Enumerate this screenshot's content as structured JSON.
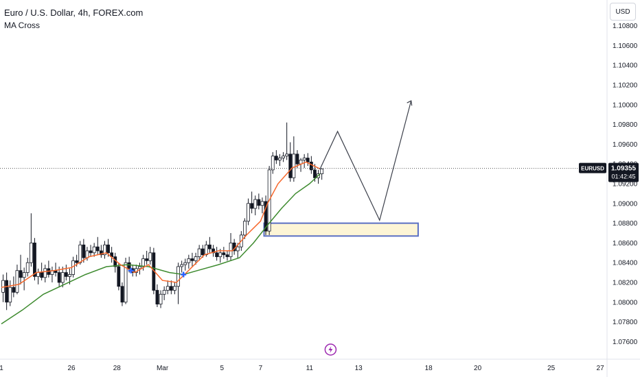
{
  "legend": {
    "title": "Euro / U.S. Dollar, 4h, FOREX.com",
    "indicator": "MA Cross"
  },
  "currency_label": "USD",
  "price_badge": {
    "symbol": "EURUSD",
    "price": "1.09355",
    "countdown": "01:42:45"
  },
  "colors": {
    "up_candle": "#ffffff",
    "down_candle": "#131722",
    "ma_fast": "#f7672b",
    "ma_slow": "#3d8a2e",
    "zone_fill": "#fdf5d6",
    "zone_border": "#5a6fc4",
    "projection": "#3b3f4a",
    "marker": "#2962ff",
    "event_icon": "#9c27b0"
  },
  "chart_data": {
    "type": "candlestick",
    "symbol": "EURUSD",
    "timeframe": "4h",
    "ylim": [
      1.0745,
      1.1095
    ],
    "y_ticks": [
      "1.07600",
      "1.07800",
      "1.08000",
      "1.08200",
      "1.08400",
      "1.08600",
      "1.08800",
      "1.09000",
      "1.09200",
      "1.09400",
      "1.09600",
      "1.09800",
      "1.10000",
      "1.10200",
      "1.10400",
      "1.10600",
      "1.10800"
    ],
    "x_labels": [
      {
        "label": "1",
        "bar": 0
      },
      {
        "label": "26",
        "bar": 20
      },
      {
        "label": "28",
        "bar": 33
      },
      {
        "label": "Mar",
        "bar": 46
      },
      {
        "label": "5",
        "bar": 63
      },
      {
        "label": "7",
        "bar": 74
      },
      {
        "label": "11",
        "bar": 88
      },
      {
        "label": "13",
        "bar": 102
      },
      {
        "label": "18",
        "bar": 122
      },
      {
        "label": "20",
        "bar": 136
      },
      {
        "label": "25",
        "bar": 157
      },
      {
        "label": "27",
        "bar": 171
      }
    ],
    "total_bars": 181,
    "candles": [
      [
        1.081,
        1.0828,
        1.08,
        1.0822
      ],
      [
        1.0822,
        1.083,
        1.0792,
        1.08
      ],
      [
        1.08,
        1.0822,
        1.0796,
        1.0815
      ],
      [
        1.0815,
        1.0826,
        1.0805,
        1.081
      ],
      [
        1.081,
        1.0838,
        1.0808,
        1.0832
      ],
      [
        1.0832,
        1.0848,
        1.0818,
        1.0825
      ],
      [
        1.0825,
        1.0835,
        1.0812,
        1.083
      ],
      [
        1.083,
        1.0845,
        1.0826,
        1.084
      ],
      [
        1.084,
        1.089,
        1.0836,
        1.086
      ],
      [
        1.086,
        1.0865,
        1.0822,
        1.0826
      ],
      [
        1.0826,
        1.0834,
        1.0818,
        1.083
      ],
      [
        1.083,
        1.084,
        1.0822,
        1.0825
      ],
      [
        1.0825,
        1.0838,
        1.082,
        1.0834
      ],
      [
        1.0834,
        1.0842,
        1.0825,
        1.0828
      ],
      [
        1.0828,
        1.0836,
        1.082,
        1.0832
      ],
      [
        1.0832,
        1.084,
        1.0826,
        1.083
      ],
      [
        1.083,
        1.0836,
        1.0815,
        1.082
      ],
      [
        1.082,
        1.0836,
        1.0815,
        1.083
      ],
      [
        1.083,
        1.0838,
        1.0822,
        1.0826
      ],
      [
        1.0826,
        1.0834,
        1.0818,
        1.0828
      ],
      [
        1.0828,
        1.0846,
        1.0825,
        1.0842
      ],
      [
        1.0842,
        1.0848,
        1.0836,
        1.084
      ],
      [
        1.084,
        1.0862,
        1.0838,
        1.0858
      ],
      [
        1.0858,
        1.0864,
        1.084,
        1.0845
      ],
      [
        1.0845,
        1.0856,
        1.0842,
        1.0852
      ],
      [
        1.0852,
        1.0858,
        1.0846,
        1.085
      ],
      [
        1.085,
        1.086,
        1.0846,
        1.0856
      ],
      [
        1.0856,
        1.0866,
        1.0848,
        1.0852
      ],
      [
        1.0852,
        1.0858,
        1.0845,
        1.0848
      ],
      [
        1.0848,
        1.0862,
        1.0844,
        1.0858
      ],
      [
        1.0858,
        1.0864,
        1.0846,
        1.085
      ],
      [
        1.085,
        1.0856,
        1.084,
        1.0846
      ],
      [
        1.0846,
        1.085,
        1.083,
        1.0836
      ],
      [
        1.0836,
        1.084,
        1.0812,
        1.0816
      ],
      [
        1.0816,
        1.082,
        1.0796,
        1.08
      ],
      [
        1.08,
        1.0845,
        1.0798,
        1.084
      ],
      [
        1.084,
        1.0846,
        1.083,
        1.0834
      ],
      [
        1.0834,
        1.0838,
        1.0826,
        1.083
      ],
      [
        1.083,
        1.0838,
        1.0826,
        1.0834
      ],
      [
        1.0834,
        1.084,
        1.0828,
        1.0836
      ],
      [
        1.0836,
        1.0848,
        1.0832,
        1.0844
      ],
      [
        1.0844,
        1.0852,
        1.0838,
        1.0842
      ],
      [
        1.0842,
        1.0856,
        1.0838,
        1.085
      ],
      [
        1.085,
        1.0855,
        1.0808,
        1.0812
      ],
      [
        1.0812,
        1.0818,
        1.0795,
        1.0798
      ],
      [
        1.0798,
        1.0812,
        1.0794,
        1.0808
      ],
      [
        1.0808,
        1.0816,
        1.0802,
        1.0812
      ],
      [
        1.0812,
        1.0822,
        1.0808,
        1.0816
      ],
      [
        1.0816,
        1.0822,
        1.0808,
        1.0812
      ],
      [
        1.0812,
        1.082,
        1.0808,
        1.0816
      ],
      [
        1.0816,
        1.084,
        1.0798,
        1.0836
      ],
      [
        1.0836,
        1.0842,
        1.083,
        1.0838
      ],
      [
        1.0838,
        1.0844,
        1.0832,
        1.084
      ],
      [
        1.084,
        1.0848,
        1.0834,
        1.0844
      ],
      [
        1.0844,
        1.085,
        1.0836,
        1.0842
      ],
      [
        1.0842,
        1.085,
        1.0838,
        1.0846
      ],
      [
        1.0846,
        1.0858,
        1.0842,
        1.0854
      ],
      [
        1.0854,
        1.0858,
        1.0845,
        1.0848
      ],
      [
        1.0848,
        1.0862,
        1.0846,
        1.0858
      ],
      [
        1.0858,
        1.0866,
        1.085,
        1.0854
      ],
      [
        1.0854,
        1.0858,
        1.0846,
        1.085
      ],
      [
        1.085,
        1.0856,
        1.0842,
        1.0846
      ],
      [
        1.0846,
        1.0854,
        1.084,
        1.085
      ],
      [
        1.085,
        1.0856,
        1.0844,
        1.0848
      ],
      [
        1.0848,
        1.0852,
        1.0842,
        1.0846
      ],
      [
        1.0846,
        1.087,
        1.0842,
        1.086
      ],
      [
        1.086,
        1.0864,
        1.0848,
        1.0852
      ],
      [
        1.0852,
        1.086,
        1.0844,
        1.0856
      ],
      [
        1.0856,
        1.0872,
        1.0852,
        1.0868
      ],
      [
        1.0868,
        1.0885,
        1.0864,
        1.0882
      ],
      [
        1.0882,
        1.0905,
        1.0878,
        1.09
      ],
      [
        1.09,
        1.0912,
        1.089,
        1.0895
      ],
      [
        1.0895,
        1.0908,
        1.0888,
        1.0904
      ],
      [
        1.0904,
        1.091,
        1.0894,
        1.0898
      ],
      [
        1.0898,
        1.0906,
        1.089,
        1.0902
      ],
      [
        1.0902,
        1.0908,
        1.0868,
        1.0872
      ],
      [
        1.0872,
        1.0938,
        1.0868,
        1.0934
      ],
      [
        1.0934,
        1.0952,
        1.093,
        1.0948
      ],
      [
        1.0948,
        1.0954,
        1.094,
        1.0944
      ],
      [
        1.0944,
        1.095,
        1.0938,
        1.0946
      ],
      [
        1.0946,
        1.0952,
        1.0942,
        1.0948
      ],
      [
        1.0948,
        1.0982,
        1.0944,
        1.095
      ],
      [
        1.095,
        1.0962,
        1.0922,
        1.0926
      ],
      [
        1.0926,
        1.0968,
        1.0922,
        1.095
      ],
      [
        1.095,
        1.0954,
        1.0936,
        1.094
      ],
      [
        1.094,
        1.0946,
        1.0932,
        1.0944
      ],
      [
        1.0944,
        1.095,
        1.0936,
        1.0946
      ],
      [
        1.0946,
        1.0951,
        1.0938,
        1.0942
      ],
      [
        1.0942,
        1.0948,
        1.093,
        1.0934
      ],
      [
        1.0934,
        1.094,
        1.0922,
        1.0926
      ],
      [
        1.0926,
        1.0934,
        1.092,
        1.093
      ],
      [
        1.093,
        1.0936,
        1.0924,
        1.0935
      ]
    ],
    "ma_fast": [
      [
        0,
        1.0815
      ],
      [
        5,
        1.0818
      ],
      [
        10,
        1.083
      ],
      [
        15,
        1.0832
      ],
      [
        20,
        1.0835
      ],
      [
        25,
        1.0846
      ],
      [
        30,
        1.085
      ],
      [
        34,
        1.0838
      ],
      [
        38,
        1.083
      ],
      [
        42,
        1.0838
      ],
      [
        46,
        1.0822
      ],
      [
        50,
        1.082
      ],
      [
        54,
        1.0834
      ],
      [
        58,
        1.0848
      ],
      [
        62,
        1.0852
      ],
      [
        66,
        1.0852
      ],
      [
        70,
        1.0868
      ],
      [
        74,
        1.0882
      ],
      [
        76,
        1.09
      ],
      [
        79,
        1.092
      ],
      [
        83,
        1.0936
      ],
      [
        87,
        1.0942
      ],
      [
        91,
        1.0935
      ]
    ],
    "ma_slow": [
      [
        0,
        1.0778
      ],
      [
        6,
        1.0792
      ],
      [
        12,
        1.0808
      ],
      [
        18,
        1.0818
      ],
      [
        24,
        1.0828
      ],
      [
        30,
        1.0836
      ],
      [
        36,
        1.0838
      ],
      [
        42,
        1.0836
      ],
      [
        48,
        1.083
      ],
      [
        52,
        1.0828
      ],
      [
        56,
        1.0832
      ],
      [
        62,
        1.0838
      ],
      [
        68,
        1.0845
      ],
      [
        72,
        1.086
      ],
      [
        76,
        1.0878
      ],
      [
        80,
        1.0895
      ],
      [
        84,
        1.091
      ],
      [
        88,
        1.092
      ],
      [
        91,
        1.093
      ]
    ],
    "cross_marker": {
      "bar": 37,
      "price": 1.0832
    },
    "cross_marker2": {
      "bar": 52,
      "price": 1.0828
    },
    "zone": {
      "bar_start": 75,
      "bar_end": 119,
      "price_top": 1.088,
      "price_bottom": 1.0867
    },
    "projection_path": [
      {
        "bar": 91,
        "price": 1.0935
      },
      {
        "bar": 96,
        "price": 1.0973
      },
      {
        "bar": 108,
        "price": 1.0883
      },
      {
        "bar": 117,
        "price": 1.1004
      }
    ],
    "current_price": 1.09355,
    "event_icon_bar": 94
  }
}
